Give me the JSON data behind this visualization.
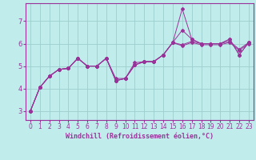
{
  "xlabel": "Windchill (Refroidissement éolien,°C)",
  "bg_color": "#c0ecec",
  "grid_color": "#9ecece",
  "line_color": "#993399",
  "spine_color": "#993399",
  "xlim": [
    -0.5,
    23.5
  ],
  "ylim": [
    2.6,
    7.8
  ],
  "yticks": [
    3,
    4,
    5,
    6,
    7
  ],
  "xticks": [
    0,
    1,
    2,
    3,
    4,
    5,
    6,
    7,
    8,
    9,
    10,
    11,
    12,
    13,
    14,
    15,
    16,
    17,
    18,
    19,
    20,
    21,
    22,
    23
  ],
  "s1": [
    3.0,
    4.05,
    4.55,
    4.85,
    4.9,
    5.35,
    5.0,
    5.0,
    5.35,
    4.45,
    4.45,
    5.15,
    5.2,
    5.2,
    5.5,
    6.05,
    7.55,
    6.2,
    6.0,
    6.0,
    6.0,
    6.2,
    5.5,
    6.05
  ],
  "s2": [
    3.0,
    4.05,
    4.55,
    4.85,
    4.9,
    5.35,
    5.0,
    5.0,
    5.35,
    4.35,
    4.45,
    5.05,
    5.2,
    5.2,
    5.5,
    6.05,
    6.6,
    6.2,
    6.0,
    6.0,
    6.0,
    6.2,
    5.5,
    6.05
  ],
  "s3_start": 0,
  "s3": [
    3.0,
    4.05,
    4.55,
    4.85,
    4.9,
    5.35,
    5.0,
    5.0,
    5.35,
    4.35,
    4.45,
    5.05,
    5.2,
    5.2,
    5.5,
    6.05,
    5.95,
    6.1,
    6.0,
    6.0,
    6.0,
    6.1,
    5.75,
    6.05
  ],
  "s4_start": 0,
  "s4": [
    3.0,
    4.05,
    4.55,
    4.85,
    4.9,
    5.35,
    5.0,
    5.0,
    5.35,
    4.35,
    4.45,
    5.05,
    5.2,
    5.2,
    5.5,
    6.05,
    5.9,
    6.05,
    5.95,
    5.95,
    5.95,
    6.05,
    5.7,
    6.0
  ],
  "xlabel_fontsize": 6,
  "tick_fontsize": 5.5
}
